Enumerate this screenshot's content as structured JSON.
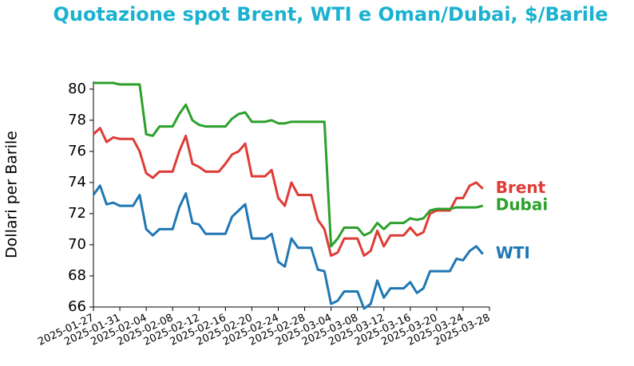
{
  "chart_data": {
    "type": "line",
    "title": "Quotazione spot Brent, WTI e Oman/Dubai, $/Barile",
    "y_label": "Dollari per Barile",
    "x": [
      "2025-01-27",
      "2025-01-28",
      "2025-01-29",
      "2025-01-30",
      "2025-01-31",
      "2025-02-01",
      "2025-02-02",
      "2025-02-03",
      "2025-02-04",
      "2025-02-05",
      "2025-02-06",
      "2025-02-07",
      "2025-02-08",
      "2025-02-09",
      "2025-02-10",
      "2025-02-11",
      "2025-02-12",
      "2025-02-13",
      "2025-02-14",
      "2025-02-15",
      "2025-02-16",
      "2025-02-17",
      "2025-02-18",
      "2025-02-19",
      "2025-02-20",
      "2025-02-21",
      "2025-02-22",
      "2025-02-23",
      "2025-02-24",
      "2025-02-25",
      "2025-02-26",
      "2025-02-27",
      "2025-02-28",
      "2025-03-01",
      "2025-03-02",
      "2025-03-03",
      "2025-03-04",
      "2025-03-05",
      "2025-03-06",
      "2025-03-07",
      "2025-03-08",
      "2025-03-09",
      "2025-03-10",
      "2025-03-11",
      "2025-03-12",
      "2025-03-13",
      "2025-03-14",
      "2025-03-15",
      "2025-03-16",
      "2025-03-17",
      "2025-03-18",
      "2025-03-19",
      "2025-03-20",
      "2025-03-21",
      "2025-03-22",
      "2025-03-23",
      "2025-03-24",
      "2025-03-25",
      "2025-03-26",
      "2025-03-27"
    ],
    "series": [
      {
        "name": "Brent",
        "color": "#de3b36",
        "values": [
          77.1,
          77.5,
          76.6,
          76.9,
          76.8,
          76.8,
          76.8,
          76.0,
          74.6,
          74.3,
          74.7,
          74.7,
          74.7,
          76.0,
          77.0,
          75.2,
          75.0,
          74.7,
          74.7,
          74.7,
          75.2,
          75.8,
          76.0,
          76.5,
          74.4,
          74.4,
          74.4,
          74.8,
          73.0,
          72.5,
          74.0,
          73.2,
          73.2,
          73.2,
          71.6,
          71.0,
          69.3,
          69.5,
          70.4,
          70.4,
          70.4,
          69.3,
          69.6,
          70.9,
          69.9,
          70.6,
          70.6,
          70.6,
          71.1,
          70.6,
          70.8,
          72.0,
          72.2,
          72.2,
          72.2,
          73.0,
          73.0,
          73.8,
          74.0,
          73.6
        ]
      },
      {
        "name": "Dubai",
        "color": "#2ca02c",
        "values": [
          80.4,
          80.4,
          80.4,
          80.4,
          80.3,
          80.3,
          80.3,
          80.3,
          77.1,
          77.0,
          77.6,
          77.6,
          77.6,
          78.4,
          79.0,
          78.0,
          77.7,
          77.6,
          77.6,
          77.6,
          77.6,
          78.1,
          78.4,
          78.5,
          77.9,
          77.9,
          77.9,
          78.0,
          77.8,
          77.8,
          77.9,
          77.9,
          77.9,
          77.9,
          77.9,
          77.9,
          69.9,
          70.4,
          71.1,
          71.1,
          71.1,
          70.6,
          70.8,
          71.4,
          71.0,
          71.4,
          71.4,
          71.4,
          71.7,
          71.6,
          71.7,
          72.2,
          72.3,
          72.3,
          72.3,
          72.4,
          72.4,
          72.4,
          72.4,
          72.5
        ]
      },
      {
        "name": "WTI",
        "color": "#1f77b4",
        "values": [
          73.2,
          73.8,
          72.6,
          72.7,
          72.5,
          72.5,
          72.5,
          73.2,
          71.0,
          70.6,
          71.0,
          71.0,
          71.0,
          72.4,
          73.3,
          71.4,
          71.3,
          70.7,
          70.7,
          70.7,
          70.7,
          71.8,
          72.2,
          72.6,
          70.4,
          70.4,
          70.4,
          70.7,
          68.9,
          68.6,
          70.4,
          69.8,
          69.8,
          69.8,
          68.4,
          68.3,
          66.2,
          66.4,
          67.0,
          67.0,
          67.0,
          65.9,
          66.2,
          67.7,
          66.6,
          67.2,
          67.2,
          67.2,
          67.6,
          66.9,
          67.2,
          68.3,
          68.3,
          68.3,
          68.3,
          69.1,
          69.0,
          69.6,
          69.9,
          69.4
        ]
      }
    ],
    "xlim": [
      "2025-01-27",
      "2025-03-28"
    ],
    "xticks": [
      "2025-01-27",
      "2025-01-31",
      "2025-02-04",
      "2025-02-08",
      "2025-02-12",
      "2025-02-16",
      "2025-02-20",
      "2025-02-24",
      "2025-02-28",
      "2025-03-04",
      "2025-03-08",
      "2025-03-12",
      "2025-03-16",
      "2025-03-20",
      "2025-03-24",
      "2025-03-28"
    ],
    "ylim": [
      66,
      80.5
    ],
    "yticks": [
      66,
      68,
      70,
      72,
      74,
      76,
      78,
      80
    ],
    "grid": false
  }
}
